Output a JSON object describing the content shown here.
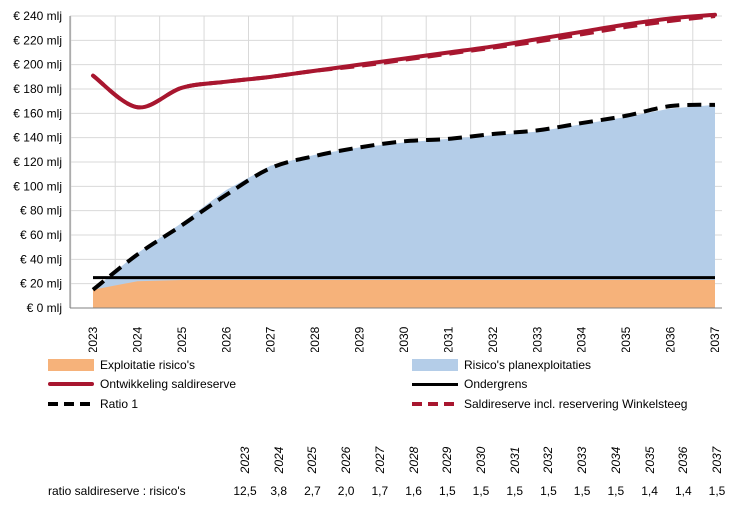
{
  "chart_data": {
    "type": "area",
    "title": "",
    "xlabel": "",
    "ylabel": "",
    "ylim": [
      0,
      240
    ],
    "y_ticks": [
      "€ 0 mlj",
      "€ 20 mlj",
      "€ 40 mlj",
      "€ 60 mlj",
      "€ 80 mlj",
      "€ 100 mlj",
      "€ 120 mlj",
      "€ 140 mlj",
      "€ 160 mlj",
      "€ 180 mlj",
      "€ 200 mlj",
      "€ 220 mlj",
      "€ 240 mlj"
    ],
    "y_tick_values": [
      0,
      20,
      40,
      60,
      80,
      100,
      120,
      140,
      160,
      180,
      200,
      220,
      240
    ],
    "categories": [
      "2023",
      "2024",
      "2025",
      "2026",
      "2027",
      "2028",
      "2029",
      "2030",
      "2031",
      "2032",
      "2033",
      "2034",
      "2035",
      "2036",
      "2037"
    ],
    "grid": true,
    "legend_position": "bottom",
    "series": [
      {
        "name": "Exploitatie risico's",
        "kind": "area",
        "color": "#f6b27a",
        "values": [
          15,
          22,
          23,
          23,
          23,
          23,
          23,
          23,
          23,
          23,
          23,
          23,
          23,
          23,
          23
        ]
      },
      {
        "name": "Risico's planexploitaties",
        "kind": "area",
        "color": "#b4cde8",
        "values": [
          15,
          45,
          70,
          97,
          117,
          126,
          132,
          136,
          139,
          142,
          145,
          151,
          157,
          164,
          167
        ]
      },
      {
        "name": "Ontwikkeling saldireserve",
        "kind": "line",
        "color": "#a8162f",
        "values": [
          191,
          165,
          181,
          186,
          190,
          195,
          200,
          205,
          210,
          215,
          221,
          227,
          233,
          238,
          241
        ]
      },
      {
        "name": "Ondergrens",
        "kind": "line",
        "color": "#000000",
        "values": [
          25,
          25,
          25,
          25,
          25,
          25,
          25,
          25,
          25,
          25,
          25,
          25,
          25,
          25,
          25
        ]
      },
      {
        "name": "Ratio 1",
        "kind": "dashed",
        "color": "#000000",
        "values": [
          15,
          44,
          68,
          93,
          115,
          125,
          132,
          137,
          139,
          143,
          146,
          152,
          158,
          166,
          167
        ]
      },
      {
        "name": "Saldireserve incl. reservering Winkelsteeg",
        "kind": "dashed",
        "color": "#a8162f",
        "values": [
          191,
          165,
          181,
          186,
          190,
          195,
          199,
          204,
          209,
          214,
          219,
          225,
          231,
          236,
          240
        ]
      }
    ]
  },
  "legend": {
    "exploitatie": "Exploitatie risico's",
    "planexploitaties": "Risico's planexploitaties",
    "ontwikkeling": "Ontwikkeling saldireserve",
    "ondergrens": "Ondergrens",
    "ratio1": "Ratio 1",
    "saldireserve_incl": "Saldireserve incl. reservering Winkelsteeg"
  },
  "ratio_table": {
    "label": "ratio saldireserve : risico's",
    "years": [
      "2023",
      "2024",
      "2025",
      "2026",
      "2027",
      "2028",
      "2029",
      "2030",
      "2031",
      "2032",
      "2033",
      "2034",
      "2035",
      "2036",
      "2037"
    ],
    "values": [
      "12,5",
      "3,8",
      "2,7",
      "2,0",
      "1,7",
      "1,6",
      "1,5",
      "1,5",
      "1,5",
      "1,5",
      "1,5",
      "1,5",
      "1,4",
      "1,4",
      "1,5"
    ]
  }
}
